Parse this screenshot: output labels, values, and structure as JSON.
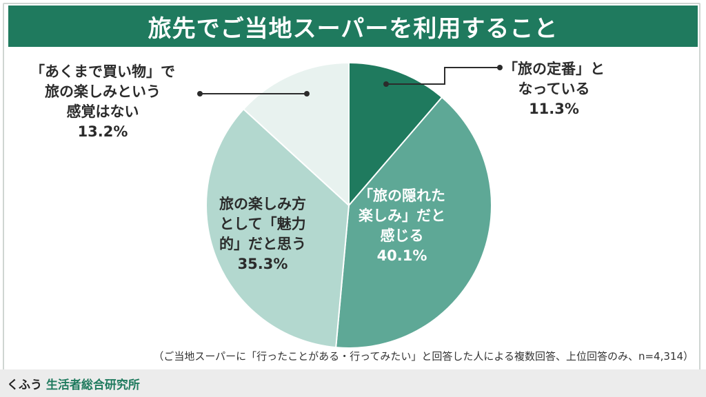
{
  "title": "旅先でご当地スーパーを利用すること",
  "chart_data": {
    "type": "pie",
    "title": "旅先でご当地スーパーを利用すること",
    "slices": [
      {
        "label_lines": [
          "「旅の定番」と",
          "なっている"
        ],
        "value": 11.3,
        "value_text": "11.3%",
        "color": "#1f7a5e",
        "text_color": "#2b2b2b"
      },
      {
        "label_lines": [
          "「旅の隠れた",
          "楽しみ」だと",
          "感じる"
        ],
        "value": 40.1,
        "value_text": "40.1%",
        "color": "#5ea896",
        "text_color": "#ffffff"
      },
      {
        "label_lines": [
          "旅の楽しみ方",
          "として「魅力",
          "的」だと思う"
        ],
        "value": 35.3,
        "value_text": "35.3%",
        "color": "#b3d8cf",
        "text_color": "#2b2b2b"
      },
      {
        "label_lines": [
          "「あくまで買い物」で",
          "旅の楽しみという",
          "感覚はない"
        ],
        "value": 13.2,
        "value_text": "13.2%",
        "color": "#e8f2ef",
        "text_color": "#2b2b2b"
      }
    ]
  },
  "footnote": "（ご当地スーパーに「行ったことがある・行ってみたい」と回答した人による複数回答、上位回答のみ、n=4,314）",
  "brand": {
    "part1": "くふう",
    "part2": "生活者総合研究所"
  }
}
